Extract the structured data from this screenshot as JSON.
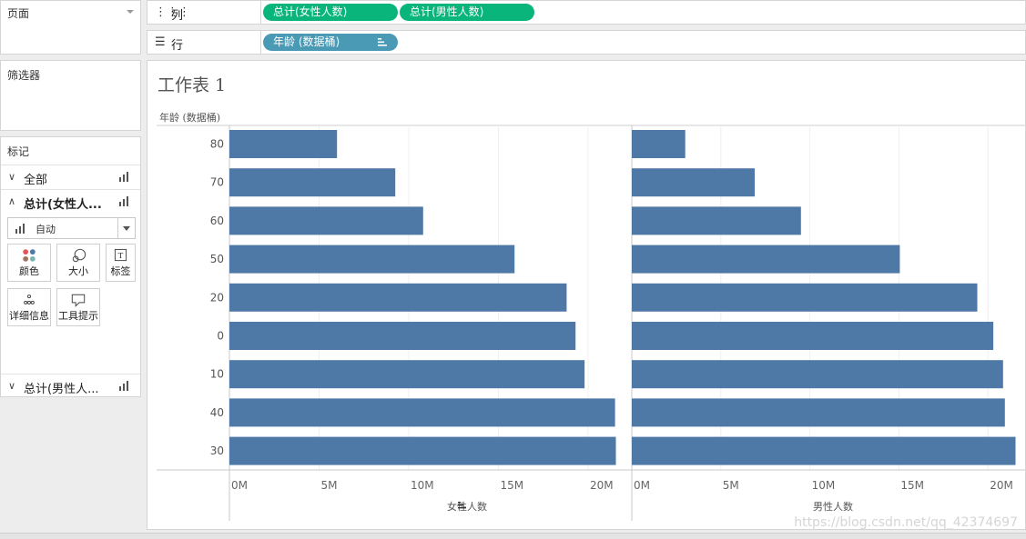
{
  "panes": {
    "pages_title": "页面",
    "filters_title": "筛选器",
    "marks_title": "标记"
  },
  "marks": {
    "all_label": "全部",
    "female_label": "总计(女性人...",
    "male_label": "总计(男性人...",
    "mark_type": "自动",
    "cards": [
      {
        "label": "颜色",
        "icon": "color-icon"
      },
      {
        "label": "大小",
        "icon": "size-icon"
      },
      {
        "label": "标签",
        "icon": "label-icon"
      },
      {
        "label": "详细信息",
        "icon": "detail-icon"
      },
      {
        "label": "工具提示",
        "icon": "tooltip-icon"
      }
    ]
  },
  "shelves": {
    "columns_label": "列",
    "rows_label": "行",
    "col_pills": [
      "总计(女性人数)",
      "总计(男性人数)"
    ],
    "row_pill": "年龄 (数据桶)"
  },
  "worksheet": {
    "title": "工作表 1"
  },
  "chart_data": {
    "type": "bar",
    "orientation": "horizontal",
    "row_header": "年龄 (数据桶)",
    "categories": [
      "80",
      "70",
      "60",
      "50",
      "20",
      "0",
      "10",
      "40",
      "30"
    ],
    "panels": [
      {
        "xlabel": "女性人数",
        "ticks": [
          "0M",
          "5M",
          "10M",
          "15M",
          "20M"
        ],
        "xlim": [
          0,
          22000000
        ],
        "values": [
          6000000,
          9250000,
          10800000,
          15900000,
          18800000,
          19300000,
          19800000,
          21500000,
          21550000
        ]
      },
      {
        "xlabel": "男性人数",
        "ticks": [
          "0M",
          "5M",
          "10M",
          "15M",
          "20M"
        ],
        "xlim": [
          0,
          22000000
        ],
        "values": [
          3000000,
          6900000,
          9500000,
          15050000,
          19400000,
          20300000,
          20850000,
          20950000,
          21550000
        ]
      }
    ],
    "bar_color": "#4e79a7",
    "grid": true
  },
  "watermark": "https://blog.csdn.net/qq_42374697"
}
